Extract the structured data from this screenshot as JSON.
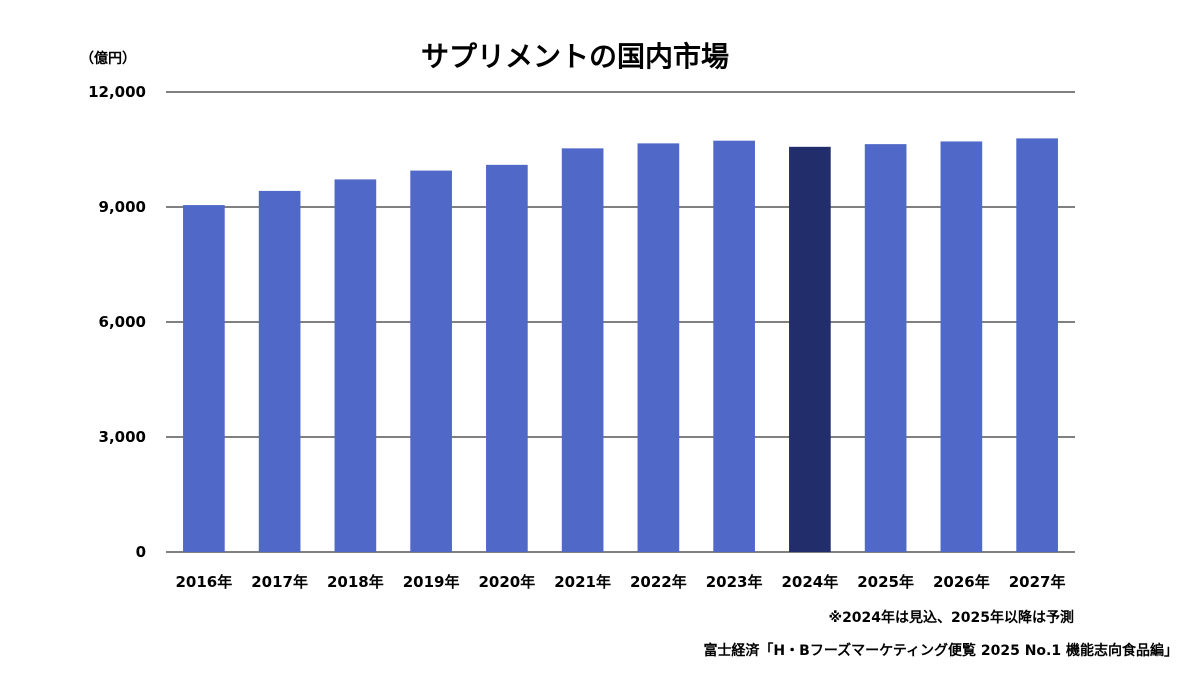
{
  "chart_data": {
    "type": "bar",
    "title": "サプリメントの国内市場",
    "unit_label": "（億円）",
    "categories": [
      "2016年",
      "2017年",
      "2018年",
      "2019年",
      "2020年",
      "2021年",
      "2022年",
      "2023年",
      "2024年",
      "2025年",
      "2026年",
      "2027年"
    ],
    "values": [
      9050,
      9420,
      9720,
      9950,
      10100,
      10530,
      10660,
      10730,
      10570,
      10640,
      10710,
      10790
    ],
    "highlight_index": 8,
    "ylim": [
      0,
      12000
    ],
    "yticks": [
      0,
      3000,
      6000,
      9000,
      12000
    ],
    "ytick_labels": [
      "0",
      "3,000",
      "6,000",
      "9,000",
      "12,000"
    ],
    "grid": true,
    "bar_color": "#5068C8",
    "highlight_color": "#222E6B"
  },
  "notes": {
    "forecast": "※2024年は見込、2025年以降は予測",
    "source": "富士経済「H・Bフーズマーケティング便覧 2025 No.1 機能志向食品編」"
  }
}
